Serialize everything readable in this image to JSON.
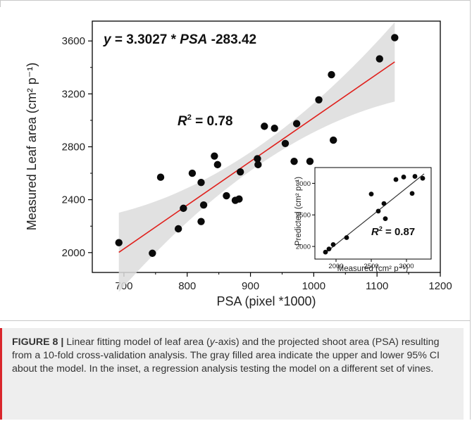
{
  "chart_data": [
    {
      "type": "scatter",
      "xlabel": "PSA (pixel *1000)",
      "ylabel": "Measured Leaf area (cm² p⁻¹)",
      "xlim": [
        650,
        1200
      ],
      "ylim": [
        1850,
        3750
      ],
      "xticks": [
        700,
        800,
        900,
        1000,
        1100,
        1200
      ],
      "yticks": [
        2000,
        2400,
        2800,
        3200,
        3600
      ],
      "equation": {
        "y": "y",
        "eq": " = 3.3027 * ",
        "var": "PSA",
        "rest": " -283.42"
      },
      "r2": {
        "R": "R",
        "sup": "2",
        "value": " = 0.78"
      },
      "fit": {
        "slope": 3.3027,
        "intercept": -283.42,
        "x_range": [
          692,
          1128
        ],
        "color": "#e0201c"
      },
      "ci_band": {
        "half_width_min": 70,
        "half_width_max": 300,
        "fill": "#dcdcdc"
      },
      "points": [
        [
          692,
          2075
        ],
        [
          745,
          1995
        ],
        [
          758,
          2570
        ],
        [
          786,
          2180
        ],
        [
          794,
          2335
        ],
        [
          808,
          2600
        ],
        [
          822,
          2530
        ],
        [
          822,
          2235
        ],
        [
          826,
          2360
        ],
        [
          843,
          2730
        ],
        [
          848,
          2665
        ],
        [
          862,
          2430
        ],
        [
          876,
          2395
        ],
        [
          882,
          2405
        ],
        [
          884,
          2610
        ],
        [
          911,
          2710
        ],
        [
          912,
          2665
        ],
        [
          922,
          2955
        ],
        [
          938,
          2940
        ],
        [
          955,
          2825
        ],
        [
          969,
          2690
        ],
        [
          973,
          2975
        ],
        [
          994,
          2690
        ],
        [
          1008,
          3155
        ],
        [
          1028,
          3345
        ],
        [
          1031,
          2850
        ],
        [
          1104,
          3465
        ],
        [
          1128,
          3625
        ]
      ]
    },
    {
      "type": "scatter",
      "xlabel": "Measured (cm² p⁻¹)",
      "ylabel": "Predicted (cm² p⁻¹)",
      "xlim": [
        1700,
        3350
      ],
      "ylim": [
        1800,
        3250
      ],
      "xticks": [
        2000,
        2500,
        3000
      ],
      "yticks": [
        2000,
        2500,
        3000
      ],
      "r2": {
        "R": "R",
        "sup": "2",
        "value": " = 0.87"
      },
      "fit": {
        "x_range": [
          1850,
          3250
        ],
        "y_range": [
          1900,
          3150
        ],
        "color": "#333333"
      },
      "points": [
        [
          1850,
          1910
        ],
        [
          1900,
          1960
        ],
        [
          1960,
          2030
        ],
        [
          2150,
          2140
        ],
        [
          2500,
          2830
        ],
        [
          2600,
          2560
        ],
        [
          2680,
          2680
        ],
        [
          2700,
          2440
        ],
        [
          2850,
          3060
        ],
        [
          2960,
          3100
        ],
        [
          3080,
          2840
        ],
        [
          3120,
          3110
        ],
        [
          3230,
          3080
        ]
      ]
    }
  ],
  "caption": {
    "label": "FIGURE 8 |",
    "t1": " Linear fitting model of leaf area (",
    "em": "y",
    "t2": "-axis) and the projected shoot area (PSA) resulting from a 10-fold cross-validation analysis. The gray filled area indicate the upper and lower 95% CI about the model. In the inset, a regression analysis testing the model on a different set of vines."
  }
}
